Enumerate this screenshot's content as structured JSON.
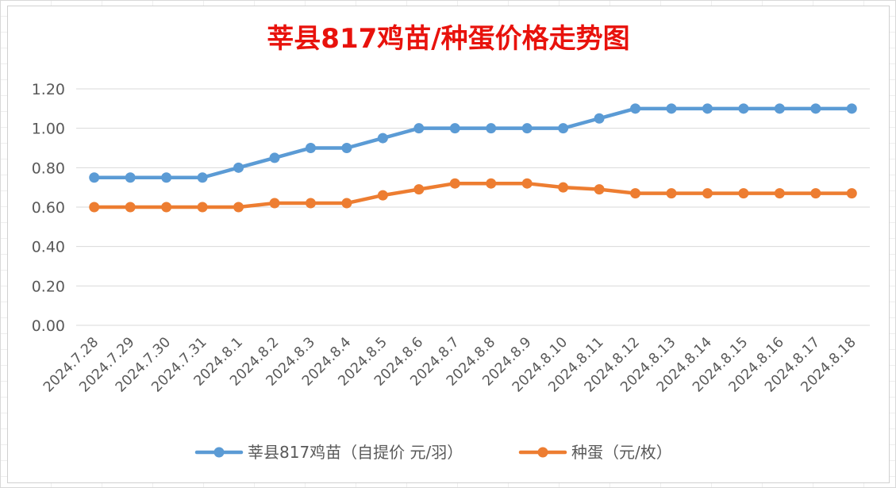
{
  "chart_data": {
    "type": "line",
    "title": "莘县817鸡苗/种蛋价格走势图",
    "xlabel": "",
    "ylabel": "",
    "ylim": [
      0,
      1.2
    ],
    "ytick_step": 0.2,
    "grid": true,
    "legend_position": "bottom",
    "x": [
      "2024.7.28",
      "2024.7.29",
      "2024.7.30",
      "2024.7.31",
      "2024.8.1",
      "2024.8.2",
      "2024.8.3",
      "2024.8.4",
      "2024.8.5",
      "2024.8.6",
      "2024.8.7",
      "2024.8.8",
      "2024.8.9",
      "2024.8.10",
      "2024.8.11",
      "2024.8.12",
      "2024.8.13",
      "2024.8.14",
      "2024.8.15",
      "2024.8.16",
      "2024.8.17",
      "2024.8.18"
    ],
    "series": [
      {
        "name": "莘县817鸡苗（自提价 元/羽）",
        "color": "#5B9BD5",
        "values": [
          0.75,
          0.75,
          0.75,
          0.75,
          0.8,
          0.85,
          0.9,
          0.9,
          0.95,
          1.0,
          1.0,
          1.0,
          1.0,
          1.0,
          1.05,
          1.1,
          1.1,
          1.1,
          1.1,
          1.1,
          1.1,
          1.1
        ]
      },
      {
        "name": "种蛋（元/枚）",
        "color": "#ED7D31",
        "values": [
          0.6,
          0.6,
          0.6,
          0.6,
          0.6,
          0.62,
          0.62,
          0.62,
          0.66,
          0.69,
          0.72,
          0.72,
          0.72,
          0.7,
          0.69,
          0.67,
          0.67,
          0.67,
          0.67,
          0.67,
          0.67,
          0.67
        ]
      }
    ]
  },
  "colors": {
    "title": "#E8120C",
    "grid": "#D9D9D9",
    "tick_text": "#595959"
  }
}
